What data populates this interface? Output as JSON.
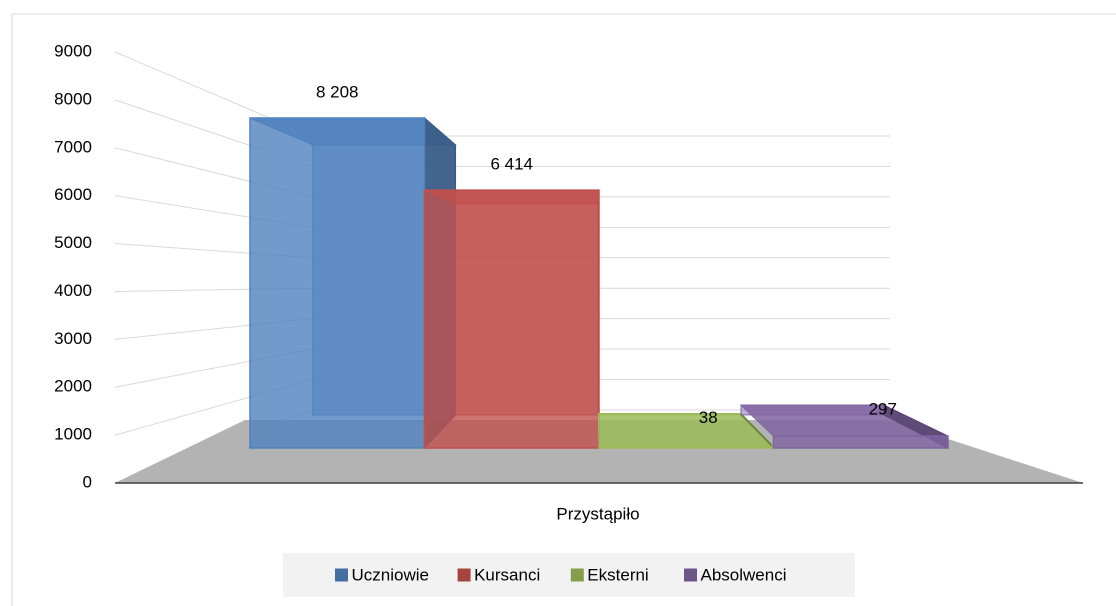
{
  "chart_data": {
    "type": "bar",
    "categories": [
      "Przystąpiło"
    ],
    "series": [
      {
        "name": "Uczniowie",
        "color": "#4f81bd",
        "values": [
          8208
        ],
        "value_labels": [
          "8 208"
        ]
      },
      {
        "name": "Kursanci",
        "color": "#c0504d",
        "values": [
          6414
        ],
        "value_labels": [
          "6 414"
        ]
      },
      {
        "name": "Eksterni",
        "color": "#9bbb59",
        "values": [
          38
        ]
      },
      {
        "name": "Absolwenci",
        "color": "#8064a2",
        "values": [
          297
        ]
      }
    ],
    "ylim": [
      0,
      9000
    ],
    "yticks": [
      0,
      1000,
      2000,
      3000,
      4000,
      5000,
      6000,
      7000,
      8000,
      9000
    ],
    "grid": true,
    "legend": "bottom"
  }
}
